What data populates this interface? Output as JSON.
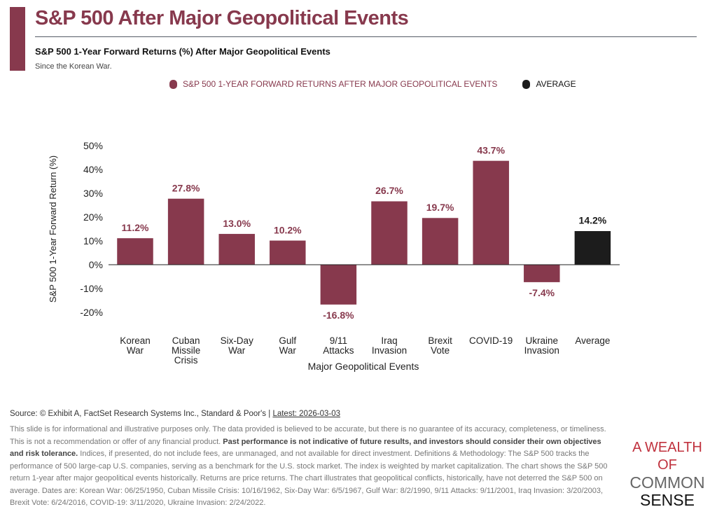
{
  "header": {
    "title": "S&P 500 After Major Geopolitical Events",
    "subtitle": "S&P 500 1-Year Forward Returns (%) After Major Geopolitical Events",
    "note": "Since the Korean War."
  },
  "colors": {
    "series": "#87394d",
    "average": "#1c1c1c"
  },
  "chart_data": {
    "type": "bar",
    "title": "S&P 500 1-Year Forward Returns (%) After Major Geopolitical Events",
    "xlabel": "Major Geopolitical Events",
    "ylabel": "S&P 500 1-Year Forward Return (%)",
    "ylim": [
      -20,
      50
    ],
    "yticks": [
      "-20%",
      "-10%",
      "0%",
      "10%",
      "20%",
      "30%",
      "40%",
      "50%"
    ],
    "legend": [
      "S&P 500 1-YEAR FORWARD RETURNS AFTER MAJOR GEOPOLITICAL EVENTS",
      "AVERAGE"
    ],
    "legend_position": "top",
    "grid": false,
    "categories": [
      [
        "Korean",
        "War"
      ],
      [
        "Cuban",
        "Missile",
        "Crisis"
      ],
      [
        "Six-Day",
        "War"
      ],
      [
        "Gulf",
        "War"
      ],
      [
        "9/11",
        "Attacks"
      ],
      [
        "Iraq",
        "Invasion"
      ],
      [
        "Brexit",
        "Vote"
      ],
      [
        "COVID-19"
      ],
      [
        "Ukraine",
        "Invasion"
      ],
      [
        "Average"
      ]
    ],
    "values": [
      11.2,
      27.8,
      13.0,
      10.2,
      -16.8,
      26.7,
      19.7,
      43.7,
      -7.4,
      14.2
    ],
    "labels": [
      "11.2%",
      "27.8%",
      "13.0%",
      "10.2%",
      "-16.8%",
      "26.7%",
      "19.7%",
      "43.7%",
      "-7.4%",
      "14.2%"
    ]
  },
  "footer": {
    "source": "Source: © Exhibit A, FactSet Research Systems Inc., Standard & Poor's | ",
    "latest": "Latest: 2026-03-03",
    "disclaimer_1": "This slide is for informational and illustrative purposes only. The data provided is believed to be accurate, but there is no guarantee of its accuracy, completeness, or timeliness. This is not a recommendation or offer of any financial product. ",
    "disclaimer_bold": "Past performance is not indicative of future results, and investors should consider their own objectives and risk tolerance.",
    "disclaimer_2": " Indices, if presented, do not include fees, are unmanaged, and not available for direct investment. Definitions & Methodology: The S&P 500 tracks the performance of 500 large-cap U.S. companies, serving as a benchmark for the U.S. stock market. The index is weighted by market capitalization. The chart shows the S&P 500 return 1-year after major geopolitical events historically. Returns are price returns. The chart illustrates that geopolitical conflicts, historically, have not deterred the S&P 500 on average. Dates are: Korean War: 06/25/1950, Cuban Missile Crisis: 10/16/1962, Six-Day War: 6/5/1967, Gulf War: 8/2/1990, 9/11 Attacks: 9/11/2001, Iraq Invasion: 3/20/2003, Brexit Vote: 6/24/2016, COVID-19: 3/11/2020, Ukraine Invasion: 2/24/2022."
  },
  "logo": {
    "line1": "A WEALTH OF",
    "line2": "COMMON",
    "line3": "SENSE"
  }
}
